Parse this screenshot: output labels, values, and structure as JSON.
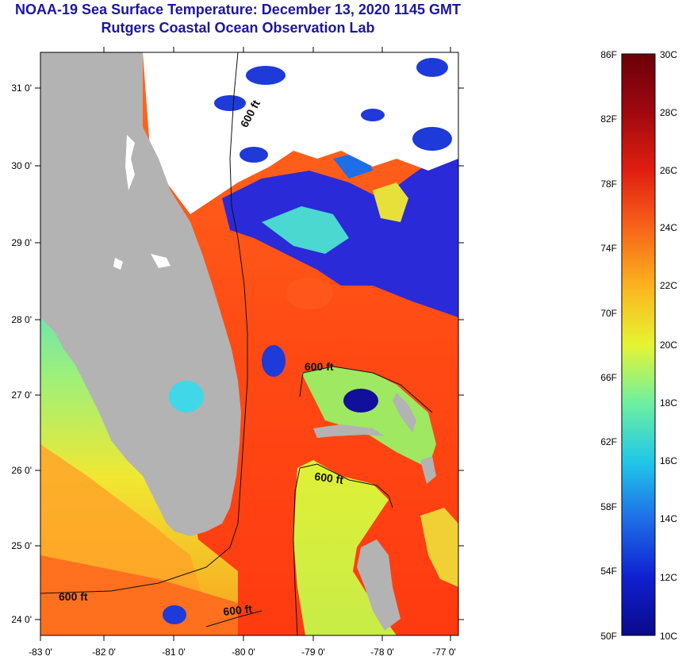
{
  "header": {
    "title": "NOAA-19 Sea Surface Temperature:  December 13, 2020 1145 GMT",
    "subtitle": "Rutgers Coastal Ocean Observation Lab"
  },
  "map": {
    "lat_ticks": [
      "31 0'",
      "30 0'",
      "29 0'",
      "28 0'",
      "27 0'",
      "26 0'",
      "25 0'",
      "24 0'"
    ],
    "lon_ticks": [
      "-83 0'",
      "-82 0'",
      "-81 0'",
      "-80 0'",
      "-79 0'",
      "-78 0'",
      "-77 0'"
    ],
    "contour_label": "600 ft",
    "colors": {
      "land": "#b3b3b3",
      "cloud": "#ffffff",
      "warm": "#ff5a1e",
      "mid": "#e8f03a",
      "cool": "#2a2ad8"
    }
  },
  "colorbar": {
    "f_labels": [
      "86F",
      "82F",
      "78F",
      "74F",
      "70F",
      "66F",
      "62F",
      "58F",
      "54F",
      "50F"
    ],
    "c_labels": [
      "30C",
      "28C",
      "26C",
      "24C",
      "22C",
      "20C",
      "18C",
      "16C",
      "14C",
      "12C",
      "10C"
    ],
    "stops": [
      "#0a0a8a",
      "#1020d0",
      "#1e6ee8",
      "#20c8e8",
      "#6ef0a0",
      "#e6f432",
      "#fcb41e",
      "#f8641a",
      "#e01e10",
      "#a00810",
      "#6a0008"
    ]
  }
}
